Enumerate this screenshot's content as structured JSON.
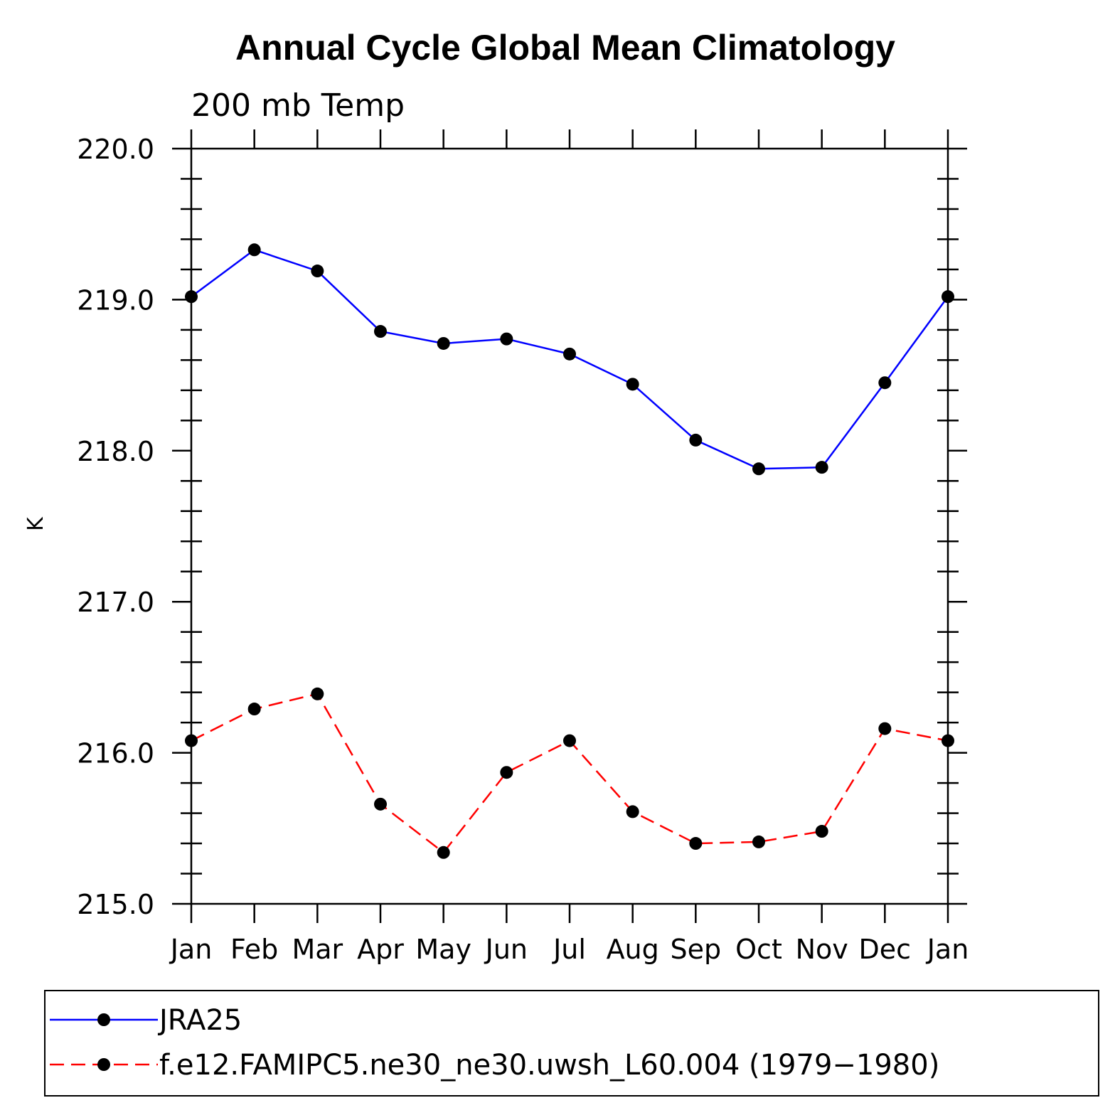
{
  "chart_data": {
    "type": "line",
    "title": "Annual Cycle Global Mean Climatology",
    "subtitle": "200 mb Temp",
    "xlabel": "",
    "ylabel": "K",
    "categories": [
      "Jan",
      "Feb",
      "Mar",
      "Apr",
      "May",
      "Jun",
      "Jul",
      "Aug",
      "Sep",
      "Oct",
      "Nov",
      "Dec",
      "Jan"
    ],
    "ylim": [
      215.0,
      220.0
    ],
    "yticks": [
      215.0,
      216.0,
      217.0,
      218.0,
      219.0,
      220.0
    ],
    "ytick_labels": [
      "215.0",
      "216.0",
      "217.0",
      "218.0",
      "219.0",
      "220.0"
    ],
    "y_minor_step": 0.2,
    "grid": false,
    "legend_position": "bottom",
    "series": [
      {
        "name": "JRA25",
        "color": "#0000ff",
        "style": "solid",
        "marker": "circle",
        "values": [
          219.02,
          219.33,
          219.19,
          218.79,
          218.71,
          218.74,
          218.64,
          218.44,
          218.07,
          217.88,
          217.89,
          218.45,
          219.02
        ]
      },
      {
        "name": "f.e12.FAMIPC5.ne30_ne30.uwsh_L60.004 (1979−1980)",
        "color": "#ff0000",
        "style": "dashed",
        "marker": "circle",
        "values": [
          216.08,
          216.29,
          216.39,
          215.66,
          215.34,
          215.87,
          216.08,
          215.61,
          215.4,
          215.41,
          215.48,
          216.16,
          216.08
        ]
      }
    ]
  }
}
